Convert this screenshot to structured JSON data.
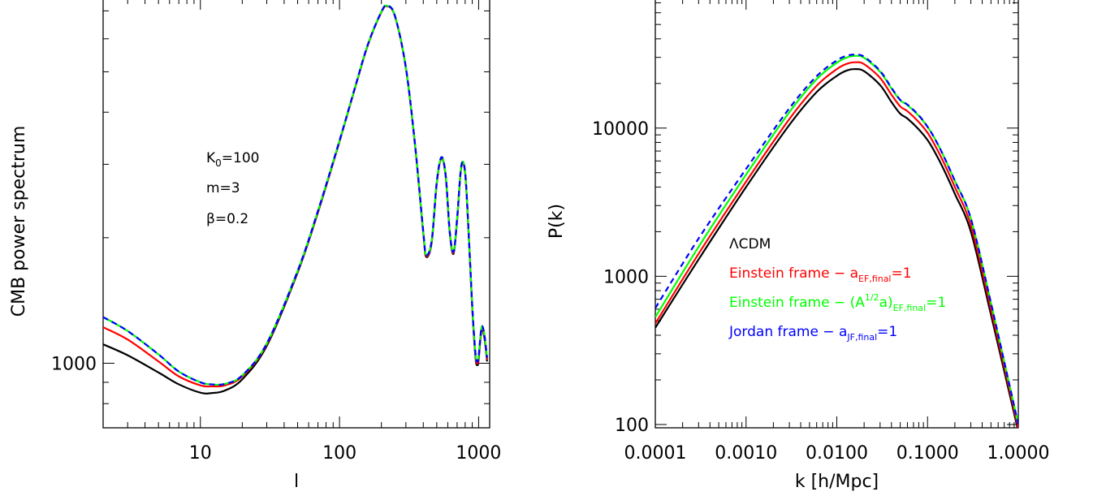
{
  "chart_data": [
    {
      "type": "line",
      "title": "",
      "xlabel": "l",
      "ylabel": "CMB power spectrum",
      "xscale": "log",
      "yscale": "log",
      "xlim": [
        2,
        1200
      ],
      "ylim": [
        700,
        7500
      ],
      "x_ticks": [
        {
          "value": 10,
          "label": "10"
        },
        {
          "value": 100,
          "label": "100"
        },
        {
          "value": 1000,
          "label": "1000"
        }
      ],
      "y_ticks": [
        {
          "value": 1000,
          "label": "1000"
        }
      ],
      "annotations": [
        {
          "label": "K_0=100",
          "main": "K",
          "sub": "0",
          "tail": "=100"
        },
        {
          "label": "m=3",
          "main": "m=3",
          "sub": "",
          "tail": ""
        },
        {
          "label": "β=0.2",
          "main": "β=0.2",
          "sub": "",
          "tail": ""
        }
      ],
      "series": [
        {
          "color": "#000000",
          "dash": false,
          "x": [
            2,
            3,
            5,
            7,
            10,
            12,
            15,
            20,
            30,
            50,
            70,
            100,
            130,
            160,
            200,
            220,
            250,
            300,
            350,
            400,
            420,
            460,
            500,
            540,
            580,
            620,
            660,
            700,
            750,
            800,
            850,
            900,
            950,
            980,
            1000,
            1050,
            1100,
            1150
          ],
          "y": [
            1110,
            1045,
            950,
            890,
            850,
            848,
            860,
            915,
            1100,
            1650,
            2300,
            3400,
            4600,
            5800,
            6950,
            7180,
            6800,
            5100,
            3300,
            2050,
            1800,
            1950,
            2700,
            3100,
            2800,
            2050,
            1830,
            2200,
            2950,
            2850,
            2000,
            1350,
            1030,
            990,
            1020,
            1200,
            1150,
            1010
          ]
        },
        {
          "color": "#ff0000",
          "dash": false,
          "x": [
            2,
            3,
            5,
            7,
            10,
            12,
            15,
            20,
            30,
            50,
            70,
            100,
            130,
            160,
            200,
            220,
            250,
            300,
            350,
            400,
            420,
            460,
            500,
            540,
            580,
            620,
            660,
            700,
            750,
            800,
            850,
            900,
            950,
            980,
            1000,
            1050,
            1100,
            1150
          ],
          "y": [
            1220,
            1140,
            1010,
            930,
            885,
            880,
            885,
            930,
            1110,
            1660,
            2310,
            3410,
            4610,
            5810,
            6960,
            7190,
            6810,
            5110,
            3310,
            2060,
            1810,
            1960,
            2710,
            3110,
            2810,
            2060,
            1840,
            2210,
            2960,
            2860,
            2010,
            1360,
            1040,
            1000,
            1030,
            1210,
            1160,
            1020
          ]
        },
        {
          "color": "#00ff00",
          "dash": false,
          "x": [
            2,
            3,
            5,
            7,
            10,
            12,
            15,
            20,
            30,
            50,
            70,
            100,
            130,
            160,
            200,
            220,
            250,
            300,
            350,
            400,
            420,
            460,
            500,
            540,
            580,
            620,
            660,
            700,
            750,
            800,
            850,
            900,
            950,
            980,
            1000,
            1050,
            1100,
            1150
          ],
          "y": [
            1290,
            1195,
            1050,
            955,
            900,
            890,
            892,
            935,
            1115,
            1665,
            2320,
            3420,
            4620,
            5820,
            6970,
            7200,
            6820,
            5120,
            3320,
            2070,
            1820,
            1970,
            2720,
            3120,
            2820,
            2070,
            1850,
            2220,
            2970,
            2870,
            2020,
            1370,
            1050,
            1010,
            1040,
            1220,
            1170,
            1030
          ]
        },
        {
          "color": "#0000ff",
          "dash": true,
          "x": [
            2,
            3,
            5,
            7,
            10,
            12,
            15,
            20,
            30,
            50,
            70,
            100,
            130,
            160,
            200,
            220,
            250,
            300,
            350,
            400,
            420,
            460,
            500,
            540,
            580,
            620,
            660,
            700,
            750,
            800,
            850,
            900,
            950,
            980,
            1000,
            1050,
            1100,
            1150
          ],
          "y": [
            1290,
            1195,
            1050,
            955,
            900,
            890,
            892,
            935,
            1115,
            1665,
            2320,
            3420,
            4620,
            5820,
            6970,
            7200,
            6820,
            5120,
            3320,
            2070,
            1820,
            1970,
            2720,
            3120,
            2820,
            2070,
            1850,
            2220,
            2970,
            2870,
            2020,
            1370,
            1050,
            1010,
            1040,
            1220,
            1170,
            1030
          ]
        }
      ]
    },
    {
      "type": "line",
      "title": "",
      "xlabel": "k [h/Mpc]",
      "ylabel": "P(k)",
      "xscale": "log",
      "yscale": "log",
      "xlim": [
        0.0001,
        1.0
      ],
      "ylim": [
        95,
        75000
      ],
      "x_ticks": [
        {
          "value": 0.0001,
          "label": "0.0001"
        },
        {
          "value": 0.001,
          "label": "0.0010"
        },
        {
          "value": 0.01,
          "label": "0.0100"
        },
        {
          "value": 0.1,
          "label": "0.1000"
        },
        {
          "value": 1.0,
          "label": "1.0000"
        }
      ],
      "y_ticks": [
        {
          "value": 100,
          "label": "100"
        },
        {
          "value": 1000,
          "label": "1000"
        },
        {
          "value": 10000,
          "label": "10000"
        }
      ],
      "legend": {
        "placement": "center-left",
        "entries": [
          {
            "color": "#000000",
            "label": "ΛCDM",
            "main": "ΛCDM",
            "sub": "",
            "sup": "",
            "mid": "",
            "sub2": "",
            "tail": ""
          },
          {
            "color": "#ff0000",
            "label": "Einstein frame − a_EF,final=1",
            "main": "Einstein frame − a",
            "sub": "EF,final",
            "sup": "",
            "mid": "",
            "sub2": "",
            "tail": "=1"
          },
          {
            "color": "#00ff00",
            "label": "Einstein frame − (A^1/2 a)_EF,final=1",
            "main": "Einstein frame − (A",
            "sub": "",
            "sup": "1/2",
            "mid": "a)",
            "sub2": "EF,final",
            "tail": "=1"
          },
          {
            "color": "#0000ff",
            "label": "Jordan frame − a_JF,final=1",
            "main": "Jordan frame − a",
            "sub": "JF,final",
            "sup": "",
            "mid": "",
            "sub2": "",
            "tail": "=1"
          }
        ]
      },
      "series": [
        {
          "color": "#000000",
          "dash": false,
          "x": [
            0.0001,
            0.0003,
            0.001,
            0.003,
            0.006,
            0.01,
            0.013,
            0.016,
            0.02,
            0.03,
            0.04,
            0.05,
            0.06,
            0.08,
            0.1,
            0.12,
            0.15,
            0.2,
            0.3,
            0.5,
            1.0
          ],
          "y": [
            450,
            1300,
            4000,
            10500,
            17500,
            22500,
            24500,
            25000,
            24200,
            19500,
            15000,
            12500,
            11600,
            9800,
            8300,
            6900,
            5300,
            3600,
            2000,
            550,
            90
          ]
        },
        {
          "color": "#ff0000",
          "dash": false,
          "x": [
            0.0001,
            0.0003,
            0.001,
            0.003,
            0.006,
            0.01,
            0.013,
            0.016,
            0.02,
            0.03,
            0.04,
            0.05,
            0.06,
            0.08,
            0.1,
            0.12,
            0.15,
            0.2,
            0.3,
            0.5,
            1.0
          ],
          "y": [
            480,
            1420,
            4350,
            11500,
            19300,
            25000,
            27200,
            27800,
            27000,
            21800,
            16800,
            14000,
            13000,
            11000,
            9300,
            7700,
            5900,
            4000,
            2200,
            600,
            95
          ]
        },
        {
          "color": "#00ff00",
          "dash": false,
          "x": [
            0.0001,
            0.0003,
            0.001,
            0.003,
            0.006,
            0.01,
            0.013,
            0.016,
            0.02,
            0.03,
            0.04,
            0.05,
            0.06,
            0.08,
            0.1,
            0.12,
            0.15,
            0.2,
            0.3,
            0.5,
            1.0
          ],
          "y": [
            530,
            1580,
            4850,
            12800,
            21400,
            27600,
            30000,
            30700,
            29800,
            24000,
            18500,
            15400,
            14300,
            12100,
            10200,
            8500,
            6500,
            4400,
            2450,
            660,
            100
          ]
        },
        {
          "color": "#0000ff",
          "dash": true,
          "x": [
            0.0001,
            0.0003,
            0.001,
            0.003,
            0.006,
            0.01,
            0.013,
            0.016,
            0.02,
            0.03,
            0.04,
            0.05,
            0.06,
            0.08,
            0.1,
            0.12,
            0.15,
            0.2,
            0.3,
            0.5,
            1.0
          ],
          "y": [
            610,
            1800,
            5300,
            13600,
            22400,
            28600,
            30800,
            31300,
            30300,
            24300,
            18700,
            15500,
            14400,
            12200,
            10200,
            8500,
            6500,
            4400,
            2450,
            660,
            100
          ]
        }
      ]
    }
  ]
}
